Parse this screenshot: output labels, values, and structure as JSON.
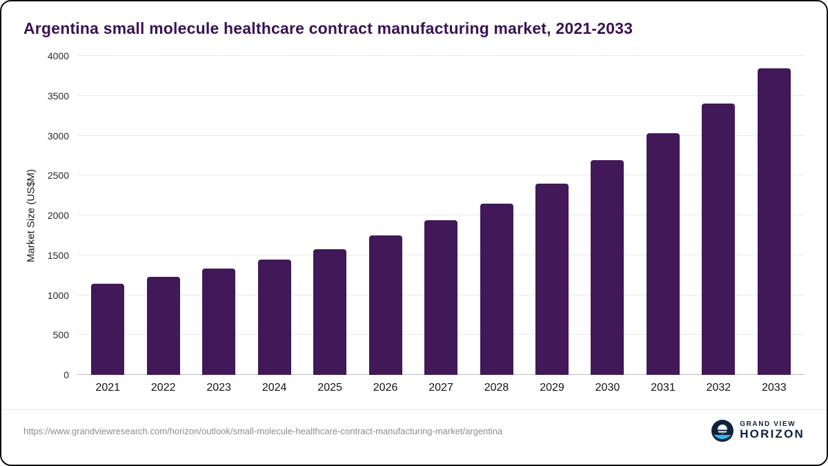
{
  "title": "Argentina small molecule healthcare contract manufacturing market, 2021-2033",
  "chart_data": {
    "type": "bar",
    "categories": [
      "2021",
      "2022",
      "2023",
      "2024",
      "2025",
      "2026",
      "2027",
      "2028",
      "2029",
      "2030",
      "2031",
      "2032",
      "2033"
    ],
    "values": [
      1140,
      1230,
      1330,
      1450,
      1580,
      1750,
      1940,
      2150,
      2400,
      2690,
      3030,
      3400,
      3840
    ],
    "title": "Argentina small molecule healthcare contract manufacturing market, 2021-2033",
    "xlabel": "",
    "ylabel": "Market Size (US$M)",
    "ylim": [
      0,
      4000
    ],
    "yticks": [
      0,
      500,
      1000,
      1500,
      2000,
      2500,
      3000,
      3500,
      4000
    ],
    "grid": true,
    "legend": "none",
    "bar_color": "#411858"
  },
  "colors": {
    "title": "#3a1253",
    "bar": "#411858",
    "gridline": "#e9e9e9",
    "zero_line": "#bdbdbd",
    "url_text": "#8d8d8d",
    "brand_navy": "#0e2240",
    "brand_blue": "#35b6e9"
  },
  "footer": {
    "source_url": "https://www.grandviewresearch.com/horizon/outlook/small-molecule-healthcare-contract-manufacturing-market/argentina",
    "brand": {
      "line1": "GRAND VIEW",
      "line2": "HORIZON"
    }
  }
}
